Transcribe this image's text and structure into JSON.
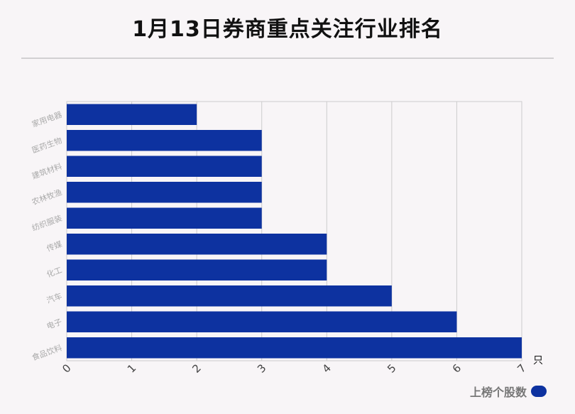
{
  "title": "1月13日券商重点关注行业排名",
  "chart_data": {
    "type": "bar",
    "orientation": "horizontal",
    "categories": [
      "家用电器",
      "医药生物",
      "建筑材料",
      "农林牧渔",
      "纺织服装",
      "传媒",
      "化工",
      "汽车",
      "电子",
      "食品饮料"
    ],
    "series": [
      {
        "name": "上榜个股数",
        "values": [
          2,
          3,
          3,
          3,
          3,
          4,
          4,
          5,
          6,
          7
        ]
      }
    ],
    "xlim": [
      0,
      7
    ],
    "x_ticks": [
      "0",
      "1",
      "2",
      "3",
      "4",
      "5",
      "6",
      "7"
    ],
    "unit_label": "只",
    "grid": true,
    "legend_position": "bottom-right",
    "bar_color": "#0d32a0"
  }
}
